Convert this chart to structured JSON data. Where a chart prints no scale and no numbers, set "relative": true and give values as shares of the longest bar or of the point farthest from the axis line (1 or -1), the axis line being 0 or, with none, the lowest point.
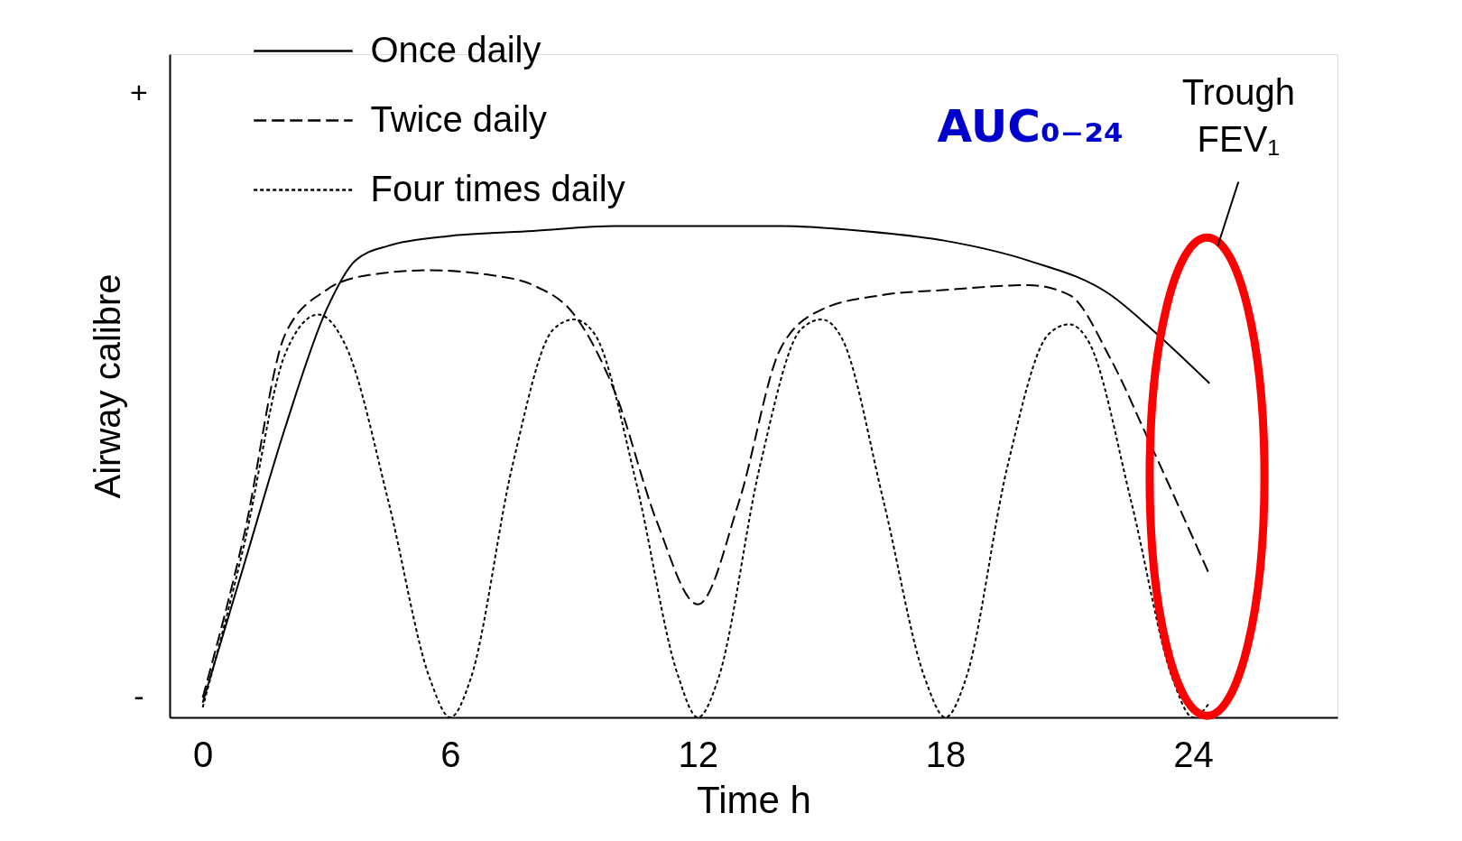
{
  "chart_data": {
    "type": "line",
    "relative": true,
    "xlabel": "Time h",
    "ylabel": "Airway calibre",
    "xlim": [
      -0.8,
      27.5
    ],
    "xticks": [
      0,
      6,
      12,
      18,
      24
    ],
    "grid": false,
    "legend": "top left",
    "marker": "none",
    "annotations": [
      "AUC₀₋₂₄",
      "Trough FEV₁",
      "+",
      "-"
    ],
    "series": [
      {
        "name": "Once daily",
        "color": "#000000",
        "line_style": "solid",
        "x": [
          0,
          1,
          2,
          3,
          3.7,
          4.5,
          6,
          8,
          10,
          12,
          14,
          16,
          18,
          20,
          22,
          23,
          24.4
        ],
        "values": [
          0.03,
          0.31,
          0.59,
          0.83,
          0.93,
          0.96,
          0.98,
          0.99,
          1.0,
          1.0,
          1.0,
          0.99,
          0.97,
          0.93,
          0.86,
          0.79,
          0.68
        ]
      },
      {
        "name": "Twice daily",
        "color": "#000000",
        "line_style": "dashed",
        "x": [
          0,
          1,
          2,
          3,
          4,
          5.5,
          7,
          8,
          9,
          10,
          11,
          12,
          13,
          14,
          15,
          16.5,
          18,
          20,
          21,
          22,
          23,
          24.4
        ],
        "values": [
          0.04,
          0.37,
          0.78,
          0.87,
          0.9,
          0.91,
          0.9,
          0.88,
          0.82,
          0.66,
          0.4,
          0.23,
          0.44,
          0.75,
          0.83,
          0.86,
          0.87,
          0.88,
          0.86,
          0.73,
          0.55,
          0.29
        ]
      },
      {
        "name": "Four times daily",
        "color": "#000000",
        "line_style": "dotted",
        "x": [
          0,
          1,
          2,
          2.8,
          3.5,
          4.5,
          5.5,
          6,
          6.5,
          7.5,
          8.5,
          9,
          9.5,
          10.5,
          11.5,
          12,
          12.5,
          13.5,
          14.5,
          15,
          15.5,
          16.5,
          17.5,
          18,
          18.5,
          19.5,
          20.5,
          21,
          21.5,
          22.5,
          23.5,
          24,
          24.4
        ],
        "values": [
          0.02,
          0.35,
          0.74,
          0.82,
          0.75,
          0.44,
          0.08,
          0,
          0.08,
          0.51,
          0.79,
          0.81,
          0.78,
          0.48,
          0.09,
          0,
          0.08,
          0.51,
          0.79,
          0.81,
          0.77,
          0.44,
          0.08,
          0,
          0.08,
          0.51,
          0.78,
          0.8,
          0.76,
          0.44,
          0.08,
          0,
          0.03
        ]
      }
    ]
  }
}
